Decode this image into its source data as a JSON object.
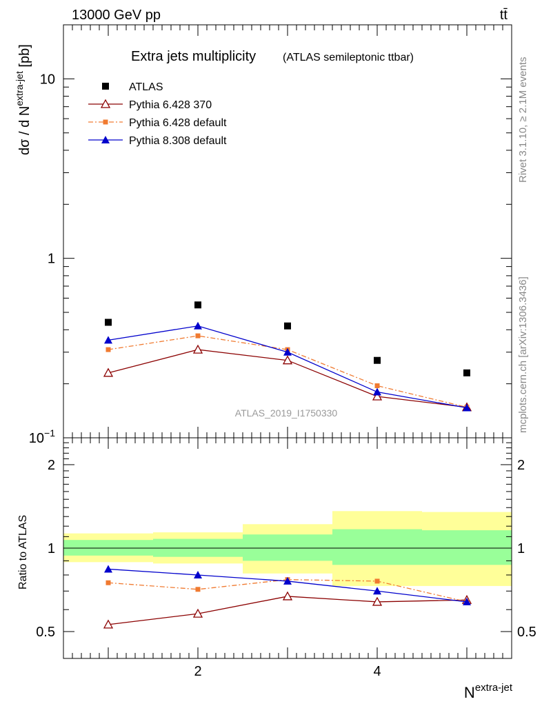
{
  "header": {
    "energy_label": "13000 GeV pp",
    "process_label": "tt̄"
  },
  "side_text": {
    "rivet": "Rivet 3.1.10, ≥ 2.1M events",
    "mcplots": "mcplots.cern.ch [arXiv:1306.3436]"
  },
  "chart_data": [
    {
      "type": "scatter",
      "panel": "main",
      "title": "Extra jets multiplicity",
      "subtitle": "(ATLAS semileptonic ttbar)",
      "watermark": "ATLAS_2019_I1750330",
      "ylabel": {
        "main": "dσ / d N",
        "sup": "extra-jet",
        "unit": " [pb]"
      },
      "yscale": "log",
      "ylim": [
        0.1,
        20
      ],
      "xlim": [
        0.5,
        5.5
      ],
      "ytick_labels": [
        {
          "value": 10,
          "label": "10"
        },
        {
          "value": 1,
          "label": "1"
        },
        {
          "value": 0.1,
          "label": "10",
          "exp": "−1"
        }
      ],
      "x": [
        1,
        2,
        3,
        4,
        5
      ],
      "series": [
        {
          "name": "ATLAS",
          "color": "#000000",
          "marker": "square",
          "line": "none",
          "values": [
            0.44,
            0.55,
            0.42,
            0.27,
            0.23
          ]
        },
        {
          "name": "Pythia 6.428 370",
          "color": "#8b0000",
          "marker": "triangle-open",
          "line": "solid",
          "values": [
            0.23,
            0.31,
            0.27,
            0.17,
            0.148
          ]
        },
        {
          "name": "Pythia 6.428 default",
          "color": "#f07a30",
          "marker": "square-small",
          "line": "dashdot",
          "values": [
            0.31,
            0.37,
            0.31,
            0.195,
            0.148
          ]
        },
        {
          "name": "Pythia 8.308 default",
          "color": "#0000cc",
          "marker": "triangle",
          "line": "solid",
          "values": [
            0.35,
            0.42,
            0.3,
            0.18,
            0.147
          ]
        }
      ],
      "legend_position": "top-left",
      "grid": false
    },
    {
      "type": "line",
      "panel": "ratio",
      "ylabel": "Ratio to ATLAS",
      "xlabel": {
        "main": "N",
        "sup": "extra-jet"
      },
      "yscale": "log",
      "ylim": [
        0.4,
        2.5
      ],
      "xlim": [
        0.5,
        5.5
      ],
      "ytick_labels": [
        {
          "value": 2,
          "label": "2"
        },
        {
          "value": 1,
          "label": "1"
        },
        {
          "value": 0.5,
          "label": "0.5"
        }
      ],
      "xtick_labels": [
        {
          "value": 2,
          "label": "2"
        },
        {
          "value": 4,
          "label": "4"
        }
      ],
      "bands": [
        {
          "xlo": 0.5,
          "xhi": 1.5,
          "yellow": [
            0.89,
            1.13
          ],
          "green": [
            0.94,
            1.07
          ]
        },
        {
          "xlo": 1.5,
          "xhi": 2.5,
          "yellow": [
            0.88,
            1.14
          ],
          "green": [
            0.93,
            1.08
          ]
        },
        {
          "xlo": 2.5,
          "xhi": 3.5,
          "yellow": [
            0.81,
            1.22
          ],
          "green": [
            0.9,
            1.12
          ]
        },
        {
          "xlo": 3.5,
          "xhi": 4.5,
          "yellow": [
            0.73,
            1.36
          ],
          "green": [
            0.87,
            1.17
          ]
        },
        {
          "xlo": 4.5,
          "xhi": 5.5,
          "yellow": [
            0.73,
            1.35
          ],
          "green": [
            0.87,
            1.16
          ]
        }
      ],
      "band_colors": {
        "yellow": "#ffff99",
        "green": "#99ff99"
      },
      "x": [
        1,
        2,
        3,
        4,
        5
      ],
      "series": [
        {
          "name": "Pythia 6.428 370",
          "color": "#8b0000",
          "marker": "triangle-open",
          "line": "solid",
          "values": [
            0.53,
            0.58,
            0.67,
            0.64,
            0.65
          ]
        },
        {
          "name": "Pythia 6.428 default",
          "color": "#f07a30",
          "marker": "square-small",
          "line": "dashdot",
          "values": [
            0.75,
            0.71,
            0.77,
            0.76,
            0.64
          ]
        },
        {
          "name": "Pythia 8.308 default",
          "color": "#0000cc",
          "marker": "triangle",
          "line": "solid",
          "values": [
            0.84,
            0.8,
            0.76,
            0.7,
            0.64
          ]
        }
      ],
      "reference_line": 1
    }
  ]
}
